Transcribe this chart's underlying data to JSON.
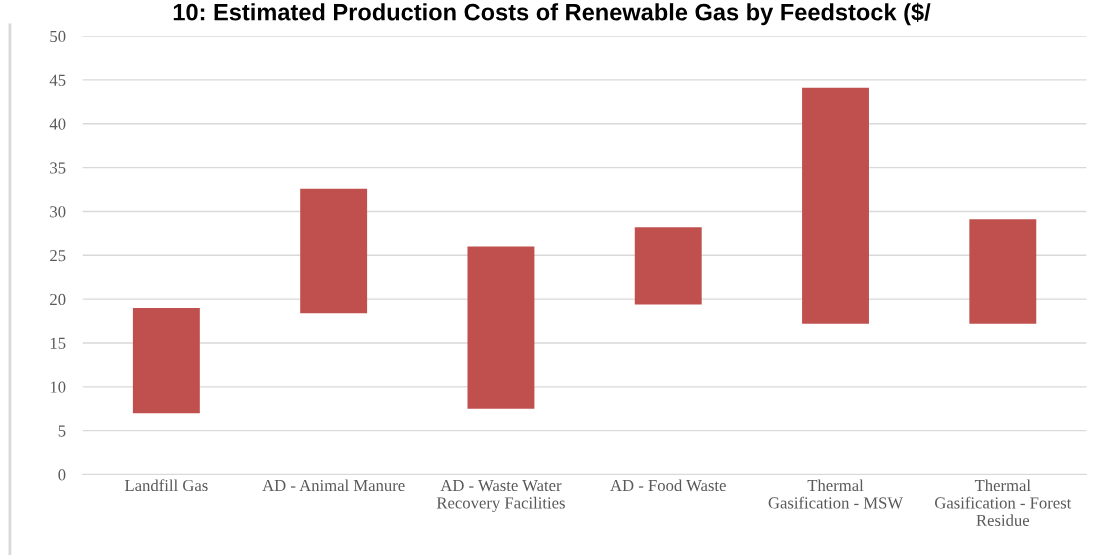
{
  "chart_data": {
    "type": "bar",
    "title": "10: Estimated Production Costs of Renewable Gas by Feedstock ($/",
    "categories": [
      "Landfill Gas",
      "AD - Animal Manure",
      "AD - Waste Water\nRecovery Facilities",
      "AD - Food Waste",
      "Thermal\nGasification - MSW",
      "Thermal\nGasification - Forest\nResidue"
    ],
    "base": [
      7.0,
      18.4,
      7.5,
      19.4,
      17.2,
      17.2
    ],
    "values": [
      12.0,
      14.2,
      18.5,
      8.8,
      26.9,
      11.9
    ],
    "color": "#c0504d",
    "ylim": [
      0,
      50
    ],
    "yticks": [
      0,
      5,
      10,
      15,
      20,
      25,
      30,
      35,
      40,
      45,
      50
    ],
    "grid": "y"
  }
}
